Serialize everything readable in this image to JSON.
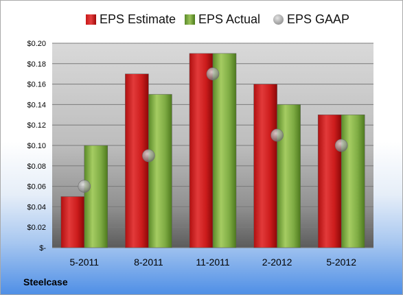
{
  "chart_data": {
    "type": "bar",
    "title": "",
    "xlabel": "",
    "ylabel": "",
    "categories": [
      "5-2011",
      "8-2011",
      "11-2011",
      "2-2012",
      "5-2012"
    ],
    "series": [
      {
        "name": "EPS Estimate",
        "kind": "bar",
        "color": "#d42020",
        "values": [
          0.05,
          0.17,
          0.19,
          0.16,
          0.13
        ]
      },
      {
        "name": "EPS Actual",
        "kind": "bar",
        "color": "#8ab44a",
        "values": [
          0.1,
          0.15,
          0.19,
          0.14,
          0.13
        ]
      },
      {
        "name": "EPS GAAP",
        "kind": "scatter",
        "color": "#a0a0a0",
        "values": [
          0.06,
          0.09,
          0.17,
          0.11,
          0.1
        ]
      }
    ],
    "ylim": [
      0,
      0.2
    ],
    "yticks": [
      0,
      0.02,
      0.04,
      0.06,
      0.08,
      0.1,
      0.12,
      0.14,
      0.16,
      0.18,
      0.2
    ],
    "ytick_labels": [
      "$-",
      "$0.02",
      "$0.04",
      "$0.06",
      "$0.08",
      "$0.10",
      "$0.12",
      "$0.14",
      "$0.16",
      "$0.18",
      "$0.20"
    ],
    "grid": true,
    "legend_position": "top"
  },
  "company": "Steelcase"
}
